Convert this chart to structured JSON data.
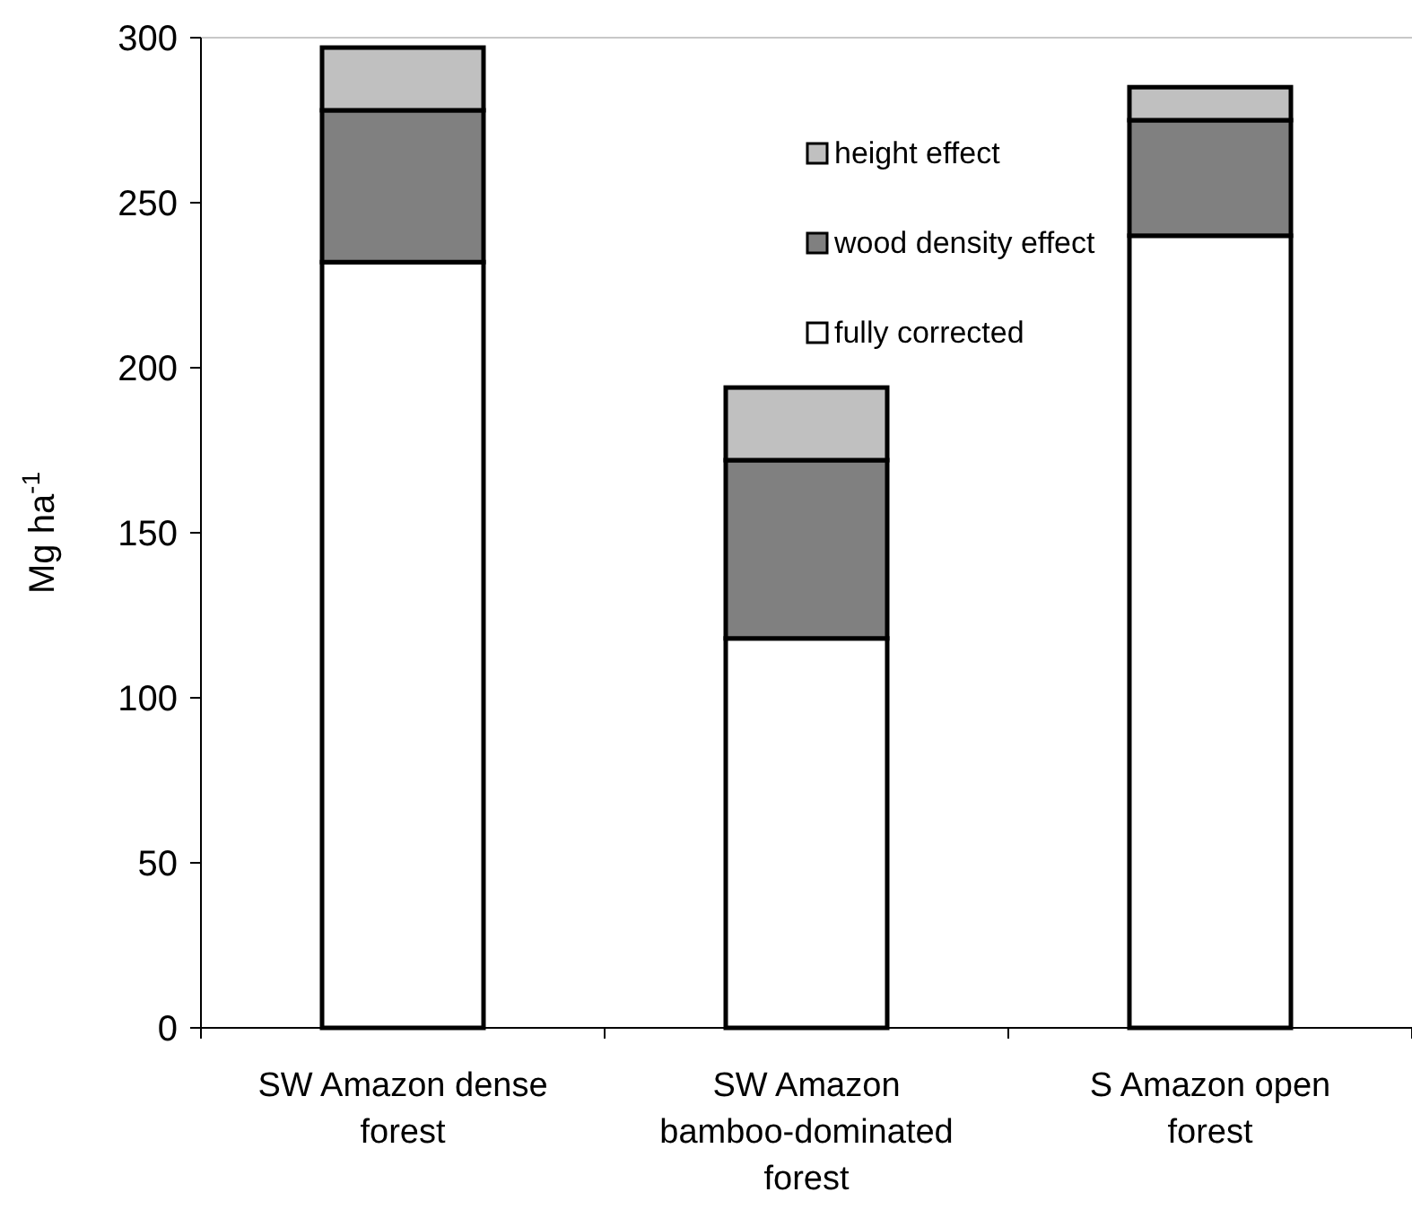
{
  "chart_data": {
    "type": "bar",
    "stacked": true,
    "ylabel": "Mg ha$^{-1}$",
    "categories": [
      "SW Amazon dense forest",
      "SW Amazon bamboo-dominated forest",
      "S Amazon open forest"
    ],
    "series": [
      {
        "name": "fully corrected",
        "color": "#ffffff",
        "values": [
          232,
          118,
          240
        ]
      },
      {
        "name": "wood density effect",
        "color": "#808080",
        "values": [
          46,
          54,
          35
        ]
      },
      {
        "name": "height effect",
        "color": "#c0c0c0",
        "values": [
          19,
          22,
          10
        ]
      }
    ],
    "ylim": [
      0,
      300
    ],
    "yticks": [
      0,
      50,
      100,
      150,
      200,
      250,
      300
    ],
    "legend": "top",
    "grid": false
  }
}
